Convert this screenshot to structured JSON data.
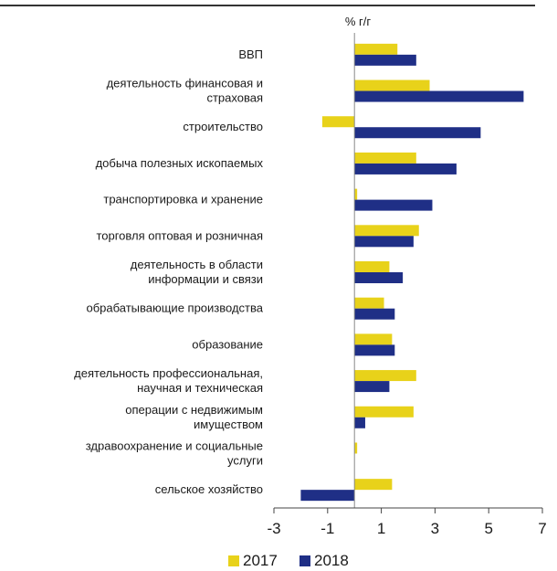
{
  "chart_data": {
    "type": "bar",
    "orientation": "horizontal",
    "unit_label": "% г/г",
    "categories": [
      "ВВП",
      "деятельность финансовая и\nстраховая",
      "строительство",
      "добыча полезных ископаемых",
      "транспортировка и хранение",
      "торговля оптовая и розничная",
      "деятельность в области\nинформации и связи",
      "обрабатывающие производства",
      "образование",
      "деятельность профессиональная,\nнаучная и техническая",
      "операции с недвижимым\nимуществом",
      "здравоохранение и социальные\nуслуги",
      "сельское хозяйство"
    ],
    "series": [
      {
        "name": "2017",
        "color": "#e8d21a",
        "values": [
          1.6,
          2.8,
          -1.2,
          2.3,
          0.1,
          2.4,
          1.3,
          1.1,
          1.4,
          2.3,
          2.2,
          0.1,
          1.4
        ]
      },
      {
        "name": "2018",
        "color": "#1f2f86",
        "values": [
          2.3,
          6.3,
          4.7,
          3.8,
          2.9,
          2.2,
          1.8,
          1.5,
          1.5,
          1.3,
          0.4,
          0.0,
          -2.0
        ]
      }
    ],
    "xlim": [
      -3,
      7
    ],
    "xticks": [
      "-3",
      "-1",
      "1",
      "3",
      "5",
      "7"
    ],
    "legend_position": "bottom",
    "grid": false
  }
}
